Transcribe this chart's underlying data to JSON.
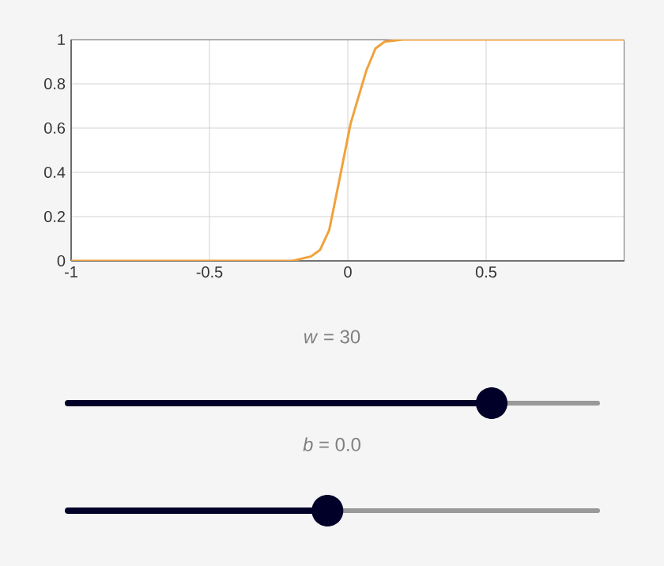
{
  "chart_data": {
    "type": "line",
    "x": [
      -1,
      -0.6,
      -0.3,
      -0.2,
      -0.133,
      -0.1,
      -0.067,
      -0.033,
      0.01,
      0.067,
      0.1,
      0.133,
      0.2,
      0.5,
      1
    ],
    "values": [
      0,
      0,
      0,
      0,
      0.02,
      0.05,
      0.14,
      0.35,
      0.62,
      0.86,
      0.96,
      0.99,
      1,
      1,
      1
    ],
    "color": "#f0a23c",
    "xlim": [
      -1,
      1
    ],
    "ylim": [
      0,
      1
    ],
    "xticks": [
      -1,
      -0.5,
      0,
      0.5
    ],
    "yticks": [
      0,
      0.2,
      0.4,
      0.6,
      0.8,
      1
    ],
    "grid": true,
    "marker": "none",
    "line_style": "solid",
    "annotations": [
      "*w* = 30",
      "*b* = 0.0"
    ]
  }
}
